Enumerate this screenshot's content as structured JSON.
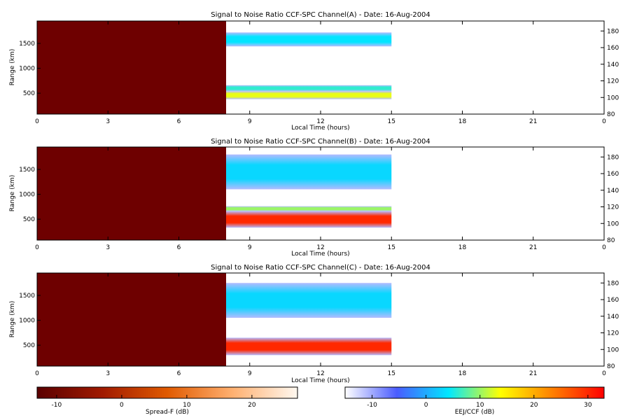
{
  "chart_data": [
    {
      "type": "heatmap",
      "title": "Signal to Noise Ratio CCF-SPC Channel(A) - Date: 16-Aug-2004",
      "xlabel": "Local Time (hours)",
      "ylabel": "Range (km)",
      "xlim": [
        0,
        24
      ],
      "ylim": [
        80,
        1950
      ],
      "y2lim": [
        80,
        192
      ],
      "xticks": [
        "0",
        "3",
        "6",
        "9",
        "12",
        "15",
        "18",
        "21",
        "0"
      ],
      "yticks": [
        500,
        1000,
        1500
      ],
      "y2ticks": [
        80,
        100,
        120,
        140,
        160,
        180
      ],
      "spreadF_block": {
        "x": [
          0,
          8
        ],
        "value_dB": -12
      },
      "data_span_hours": [
        8,
        15
      ],
      "bands": [
        {
          "range_km": [
            1440,
            1720
          ],
          "peak_dB": 4
        },
        {
          "range_km": [
            540,
            660
          ],
          "peak_dB": 6
        },
        {
          "range_km": [
            380,
            540
          ],
          "peak_dB": 13
        }
      ]
    },
    {
      "type": "heatmap",
      "title": "Signal to Noise Ratio CCF-SPC Channel(B) - Date: 16-Aug-2004",
      "xlabel": "Local Time (hours)",
      "ylabel": "Range (km)",
      "xlim": [
        0,
        24
      ],
      "ylim": [
        80,
        1950
      ],
      "y2lim": [
        80,
        192
      ],
      "xticks": [
        "0",
        "3",
        "6",
        "9",
        "12",
        "15",
        "18",
        "21",
        "0"
      ],
      "yticks": [
        500,
        1000,
        1500
      ],
      "y2ticks": [
        80,
        100,
        120,
        140,
        160,
        180
      ],
      "spreadF_block": {
        "x": [
          0,
          8
        ],
        "value_dB": -12
      },
      "data_span_hours": [
        8,
        15
      ],
      "bands": [
        {
          "range_km": [
            1100,
            1800
          ],
          "peak_dB": 3
        },
        {
          "range_km": [
            660,
            760
          ],
          "peak_dB": 10
        },
        {
          "range_km": [
            330,
            660
          ],
          "peak_dB": 30
        }
      ]
    },
    {
      "type": "heatmap",
      "title": "Signal to Noise Ratio CCF-SPC Channel(C) - Date: 16-Aug-2004",
      "xlabel": "Local Time (hours)",
      "ylabel": "Range (km)",
      "xlim": [
        0,
        24
      ],
      "ylim": [
        80,
        1950
      ],
      "y2lim": [
        80,
        192
      ],
      "xticks": [
        "0",
        "3",
        "6",
        "9",
        "12",
        "15",
        "18",
        "21",
        "0"
      ],
      "yticks": [
        500,
        1000,
        1500
      ],
      "y2ticks": [
        80,
        100,
        120,
        140,
        160,
        180
      ],
      "spreadF_block": {
        "x": [
          0,
          8
        ],
        "value_dB": -12
      },
      "data_span_hours": [
        8,
        15
      ],
      "bands": [
        {
          "range_km": [
            1050,
            1750
          ],
          "peak_dB": 3
        },
        {
          "range_km": [
            300,
            650
          ],
          "peak_dB": 30
        }
      ]
    }
  ],
  "colorbars": [
    {
      "label": "Spread-F (dB)",
      "range": [
        -13,
        27
      ],
      "ticks": [
        "-10",
        "0",
        "10",
        "20"
      ],
      "ticks_values": [
        -10,
        0,
        10,
        20
      ],
      "colors": [
        "#5a0000",
        "#a01a00",
        "#e05a00",
        "#ffb070",
        "#fff8f0"
      ]
    },
    {
      "label": "EEJ/CCF (dB)",
      "range": [
        -15,
        33
      ],
      "ticks": [
        "-10",
        "0",
        "10",
        "20",
        "30"
      ],
      "ticks_values": [
        -10,
        0,
        10,
        20,
        30
      ],
      "colors": [
        "#ffffff",
        "#4a5cff",
        "#00e8ff",
        "#ffff00",
        "#ff8000",
        "#ff0000"
      ]
    }
  ],
  "colors": {
    "spreadF_bg": "#6e0000",
    "frame": "#000000"
  }
}
